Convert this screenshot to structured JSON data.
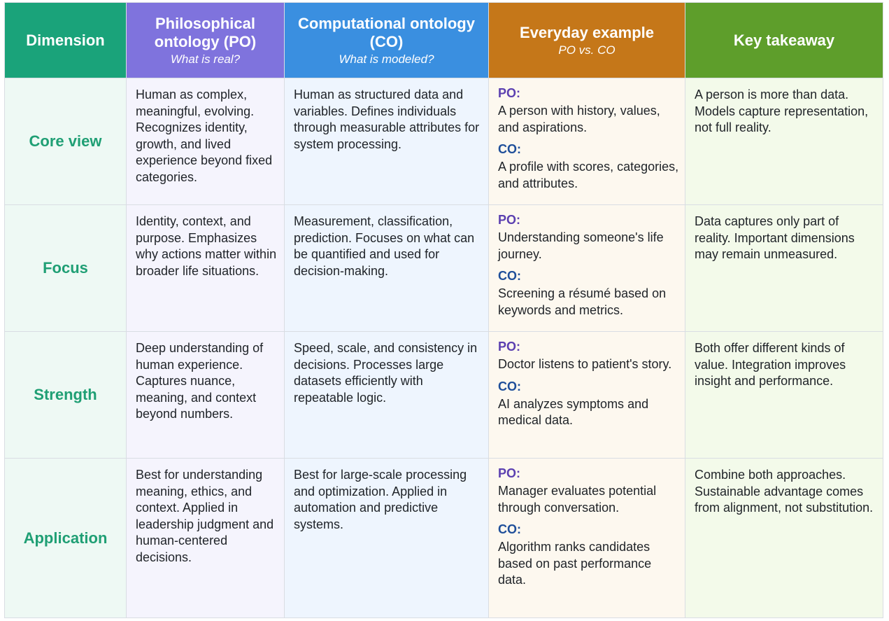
{
  "header": {
    "dimension": "Dimension",
    "po": {
      "title": "Philosophical ontology (PO)",
      "subtitle": "What is real?"
    },
    "co": {
      "title": "Computational ontology (CO)",
      "subtitle": "What is modeled?"
    },
    "example": {
      "title": "Everyday example",
      "subtitle": "PO vs. CO"
    },
    "takeaway": {
      "title": "Key takeaway"
    }
  },
  "labels": {
    "po_tag": "PO:",
    "co_tag": "CO:"
  },
  "rows": [
    {
      "dimension": "Core view",
      "po": "Human as complex, meaningful, evolving. Recognizes identity, growth, and lived experience beyond fixed categories.",
      "co": "Human as structured data and variables. Defines individuals through measurable attributes for system processing.",
      "example_po": "A person with history, values, and aspirations.",
      "example_co": "A profile with scores, categories, and attributes.",
      "takeaway": "A person is more than data. Models capture representation, not full reality."
    },
    {
      "dimension": "Focus",
      "po": "Identity, context, and purpose. Emphasizes why actions matter within broader life situations.",
      "co": "Measurement, classification, prediction. Focuses on what can be quantified and used for decision-making.",
      "example_po": "Understanding someone's life journey.",
      "example_co": "Screening a résumé based on keywords and metrics.",
      "takeaway": "Data captures only part of reality. Important dimensions may remain unmeasured."
    },
    {
      "dimension": "Strength",
      "po": "Deep understanding of human experience. Captures nuance, meaning, and context beyond numbers.",
      "co": "Speed, scale, and consistency in decisions. Processes large datasets efficiently with repeatable logic.",
      "example_po": "Doctor listens to patient's story.",
      "example_co": "AI analyzes symptoms and medical data.",
      "takeaway": "Both offer different kinds of value. Integration improves insight and performance."
    },
    {
      "dimension": "Application",
      "po": "Best for understanding meaning, ethics, and context. Applied in leadership judgment and human-centered decisions.",
      "co": "Best for large-scale processing and optimization. Applied in automation and predictive systems.",
      "example_po": "Manager evaluates potential through conversation.",
      "example_co": "Algorithm ranks candidates based on past performance data.",
      "takeaway": "Combine both approaches. Sustainable advantage comes from alignment, not substitution."
    }
  ],
  "colors": {
    "dimension_header": "#1aa37a",
    "po_header": "#7f73dd",
    "co_header": "#3a8fe0",
    "example_header": "#c57719",
    "takeaway_header": "#5e9e2b"
  }
}
